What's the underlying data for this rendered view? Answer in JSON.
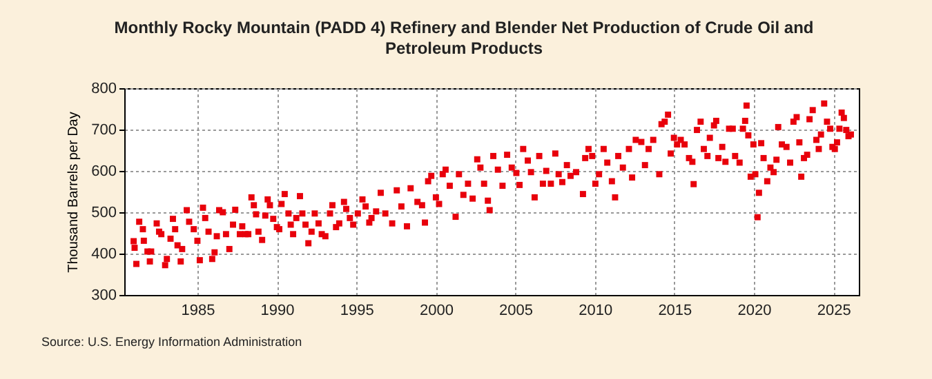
{
  "chart_data": {
    "type": "scatter",
    "title": "Monthly Rocky Mountain (PADD 4) Refinery and Blender Net Production of Crude Oil and Petroleum Products",
    "ylabel": "Thousand Barrels per Day",
    "annotations": [
      "Source: U.S. Energy Information Administration"
    ],
    "xlim": [
      1980.4,
      2026.6
    ],
    "xticks": [
      1985,
      1990,
      1995,
      2000,
      2005,
      2010,
      2015,
      2020,
      2025
    ],
    "ylim": [
      300,
      800
    ],
    "yticks": [
      300,
      400,
      500,
      600,
      700,
      800
    ],
    "grid": true,
    "marker": "square",
    "series": [
      {
        "color": "#e8000b",
        "x": [
          1980.99,
          1981.05,
          1981.16,
          1981.34,
          1981.57,
          1981.63,
          1981.86,
          1982.01,
          1982.09,
          1982.44,
          1982.59,
          1982.73,
          1982.97,
          1983.08,
          1983.31,
          1983.46,
          1983.6,
          1983.75,
          1983.95,
          1984.04,
          1984.33,
          1984.48,
          1984.77,
          1985.0,
          1985.15,
          1985.35,
          1985.49,
          1985.7,
          1985.93,
          1986.08,
          1986.22,
          1986.37,
          1986.6,
          1986.8,
          1987.01,
          1987.24,
          1987.38,
          1987.67,
          1987.82,
          1988.02,
          1988.2,
          1988.4,
          1988.55,
          1988.69,
          1988.84,
          1989.07,
          1989.27,
          1989.42,
          1989.56,
          1989.77,
          1990.0,
          1990.15,
          1990.29,
          1990.49,
          1990.73,
          1990.87,
          1991.02,
          1991.22,
          1991.45,
          1991.6,
          1991.8,
          1991.98,
          1992.18,
          1992.38,
          1992.62,
          1992.82,
          1993.05,
          1993.34,
          1993.49,
          1993.72,
          1993.92,
          1994.22,
          1994.36,
          1994.59,
          1994.8,
          1995.09,
          1995.38,
          1995.58,
          1995.81,
          1995.95,
          1996.24,
          1996.53,
          1996.82,
          1997.25,
          1997.54,
          1997.83,
          1998.18,
          1998.41,
          1998.84,
          1999.13,
          1999.31,
          1999.51,
          1999.71,
          2000.0,
          2000.2,
          2000.43,
          2000.61,
          2000.87,
          2001.24,
          2001.45,
          2001.73,
          2002.02,
          2002.31,
          2002.6,
          2002.8,
          2003.03,
          2003.27,
          2003.38,
          2003.61,
          2003.9,
          2004.19,
          2004.48,
          2004.77,
          2005.06,
          2005.26,
          2005.49,
          2005.78,
          2005.98,
          2006.21,
          2006.5,
          2006.73,
          2006.94,
          2007.23,
          2007.51,
          2007.72,
          2007.95,
          2008.24,
          2008.47,
          2008.82,
          2009.25,
          2009.39,
          2009.6,
          2009.83,
          2010.03,
          2010.26,
          2010.55,
          2010.78,
          2011.07,
          2011.27,
          2011.47,
          2011.76,
          2012.14,
          2012.34,
          2012.57,
          2012.92,
          2013.15,
          2013.38,
          2013.67,
          2014.05,
          2014.19,
          2014.39,
          2014.6,
          2014.77,
          2014.97,
          2015.17,
          2015.4,
          2015.64,
          2015.92,
          2016.13,
          2016.21,
          2016.42,
          2016.65,
          2016.85,
          2017.08,
          2017.23,
          2017.49,
          2017.63,
          2017.77,
          2018.01,
          2018.21,
          2018.44,
          2018.67,
          2018.82,
          2019.1,
          2019.31,
          2019.45,
          2019.54,
          2019.65,
          2019.8,
          2019.97,
          2020.09,
          2020.23,
          2020.32,
          2020.46,
          2020.61,
          2020.84,
          2021.04,
          2021.24,
          2021.42,
          2021.53,
          2021.76,
          2022.05,
          2022.28,
          2022.49,
          2022.69,
          2022.86,
          2022.98,
          2023.15,
          2023.35,
          2023.5,
          2023.7,
          2023.93,
          2024.08,
          2024.22,
          2024.42,
          2024.6,
          2024.8,
          2024.94,
          2025.09,
          2025.23,
          2025.38,
          2025.52,
          2025.66,
          2025.81,
          2025.95,
          2026.1
        ],
        "values": [
          430,
          414,
          375,
          477,
          459,
          431,
          405,
          381,
          405,
          473,
          453,
          447,
          372,
          387,
          436,
          484,
          459,
          420,
          381,
          411,
          505,
          477,
          459,
          431,
          384,
          511,
          486,
          453,
          387,
          403,
          442,
          505,
          500,
          447,
          411,
          470,
          506,
          447,
          466,
          447,
          447,
          536,
          517,
          495,
          453,
          433,
          492,
          531,
          517,
          484,
          464,
          459,
          520,
          544,
          497,
          470,
          447,
          486,
          539,
          497,
          470,
          425,
          453,
          497,
          473,
          447,
          442,
          497,
          517,
          464,
          473,
          525,
          508,
          486,
          470,
          497,
          531,
          514,
          475,
          486,
          502,
          547,
          497,
          473,
          553,
          514,
          466,
          558,
          525,
          517,
          475,
          575,
          588,
          536,
          520,
          592,
          603,
          564,
          489,
          592,
          542,
          569,
          533,
          628,
          608,
          569,
          528,
          505,
          636,
          603,
          564,
          639,
          608,
          595,
          566,
          653,
          625,
          597,
          536,
          636,
          569,
          600,
          569,
          642,
          592,
          573,
          614,
          588,
          597,
          544,
          631,
          653,
          636,
          569,
          592,
          653,
          620,
          575,
          536,
          636,
          608,
          653,
          584,
          675,
          670,
          614,
          653,
          675,
          592,
          713,
          719,
          736,
          642,
          680,
          664,
          675,
          664,
          631,
          622,
          568,
          699,
          719,
          653,
          636,
          680,
          710,
          721,
          631,
          658,
          622,
          702,
          702,
          636,
          620,
          702,
          721,
          758,
          686,
          586,
          664,
          592,
          488,
          547,
          667,
          631,
          575,
          608,
          597,
          627,
          706,
          664,
          658,
          620,
          719,
          730,
          669,
          586,
          631,
          639,
          725,
          747,
          675,
          653,
          688,
          763,
          719,
          702,
          658,
          653,
          669,
          702,
          741,
          728,
          699,
          684,
          688
        ]
      }
    ]
  }
}
